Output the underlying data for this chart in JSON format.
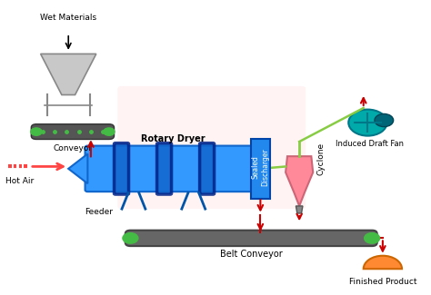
{
  "colors": {
    "bg_color": "#ffffff",
    "blue_dryer": "#3399ff",
    "blue_dark": "#1166cc",
    "green_conveyor": "#44bb44",
    "red_arrow": "#cc0000",
    "hot_air_red": "#ff4444",
    "pink_cyclone": "#ff8899",
    "teal_fan": "#00aaaa",
    "orange_product": "#ff8833",
    "gray_hopper": "#aaaaaa",
    "line_green": "#88cc44",
    "belt_gray": "#666666"
  },
  "labels": {
    "wet_materials": "Wet Materials",
    "conveyor": "Conveyor",
    "hot_air": "Hot Air",
    "feeder": "Feeder",
    "rotary_dryer": "Rotary Dryer",
    "sealed_discharger": "Sealed\nDischarger",
    "cyclone": "Cyclone",
    "induced_draft_fan": "Induced Draft Fan",
    "belt_conveyor": "Belt Conveyor",
    "finished_product": "Finished Product"
  }
}
